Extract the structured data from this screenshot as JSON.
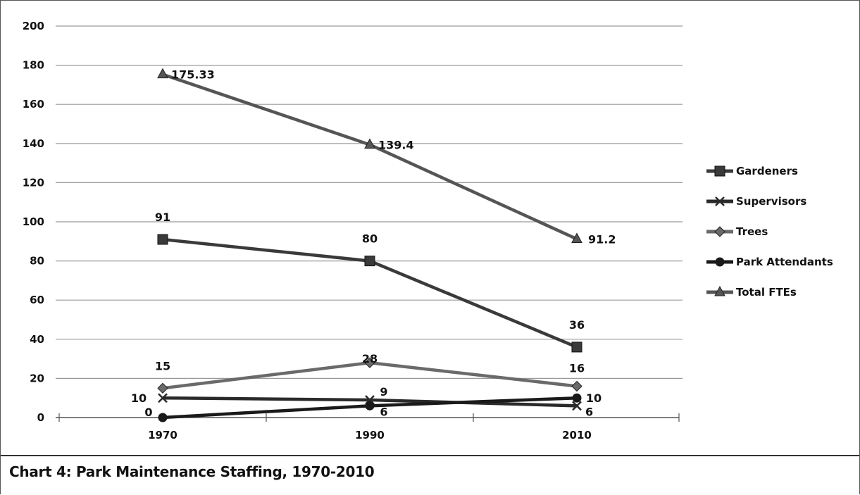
{
  "caption": "Chart 4: Park Maintenance Staffing, 1970-2010",
  "chart_data": {
    "type": "line",
    "title": "",
    "xlabel": "",
    "ylabel": "",
    "x": [
      "1970",
      "1990",
      "2010"
    ],
    "ylim": [
      0,
      200
    ],
    "yticks": [
      0,
      20,
      40,
      60,
      80,
      100,
      120,
      140,
      160,
      180,
      200
    ],
    "grid": true,
    "legend_position": "right",
    "series": [
      {
        "name": "Gardeners",
        "values": [
          91,
          80,
          36
        ],
        "marker": "square",
        "color": "#3a3a3a",
        "labels": [
          "91",
          "80",
          "36"
        ]
      },
      {
        "name": "Supervisors",
        "values": [
          10,
          9,
          6
        ],
        "marker": "x",
        "color": "#2a2a2a",
        "labels": [
          "10",
          "9",
          "6"
        ]
      },
      {
        "name": "Trees",
        "values": [
          15,
          28,
          16
        ],
        "marker": "diamond",
        "color": "#6a6a6a",
        "labels": [
          "15",
          "28",
          "16"
        ]
      },
      {
        "name": "Park Attendants",
        "values": [
          0,
          6,
          10
        ],
        "marker": "circle",
        "color": "#1a1a1a",
        "labels": [
          "0",
          "6",
          "10"
        ]
      },
      {
        "name": "Total FTEs",
        "values": [
          175.33,
          139.4,
          91.2
        ],
        "marker": "triangle",
        "color": "#555555",
        "labels": [
          "175.33",
          "139.4",
          "91.2"
        ]
      }
    ]
  }
}
